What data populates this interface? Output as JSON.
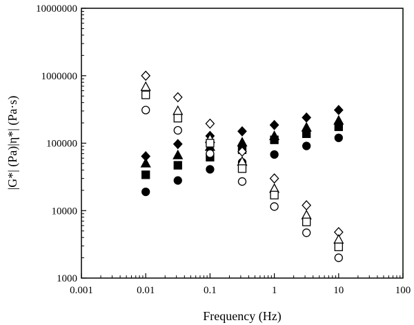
{
  "chart_data": {
    "type": "scatter",
    "title": "",
    "xlabel": "Frequency (Hz)",
    "ylabel": "|G*| (Pa)|η*| (Pa·s)",
    "xscale": "log",
    "yscale": "log",
    "xlim": [
      0.001,
      100
    ],
    "ylim": [
      1000,
      10000000
    ],
    "xticks": [
      "0.001",
      "0.01",
      "0.1",
      "1",
      "10",
      "100"
    ],
    "yticks": [
      "1000",
      "10000",
      "100000",
      "1000000",
      "10000000"
    ],
    "grid": false,
    "legend": "none",
    "x": [
      0.01,
      0.0316,
      0.1,
      0.316,
      1,
      3.16,
      10
    ],
    "series": [
      {
        "marker": "diamond",
        "filled": true,
        "values": [
          64000,
          97000,
          128000,
          150000,
          186000,
          240000,
          310000
        ]
      },
      {
        "marker": "triangle",
        "filled": true,
        "values": [
          50000,
          66000,
          88000,
          102000,
          127000,
          170000,
          215000
        ]
      },
      {
        "marker": "square",
        "filled": true,
        "values": [
          34000,
          47000,
          62000,
          80000,
          112000,
          138000,
          175000
        ]
      },
      {
        "marker": "circle",
        "filled": true,
        "values": [
          19000,
          28000,
          41000,
          52000,
          68000,
          91000,
          120000
        ]
      },
      {
        "marker": "diamond",
        "filled": false,
        "values": [
          1000000,
          480000,
          195000,
          75000,
          30000,
          12000,
          4800
        ]
      },
      {
        "marker": "triangle",
        "filled": false,
        "values": [
          680000,
          300000,
          115000,
          53000,
          21000,
          8500,
          3700
        ]
      },
      {
        "marker": "square",
        "filled": false,
        "values": [
          520000,
          235000,
          100000,
          42000,
          17000,
          6800,
          2900
        ]
      },
      {
        "marker": "circle",
        "filled": false,
        "values": [
          310000,
          155000,
          70000,
          27000,
          11500,
          4700,
          2000
        ]
      }
    ]
  }
}
